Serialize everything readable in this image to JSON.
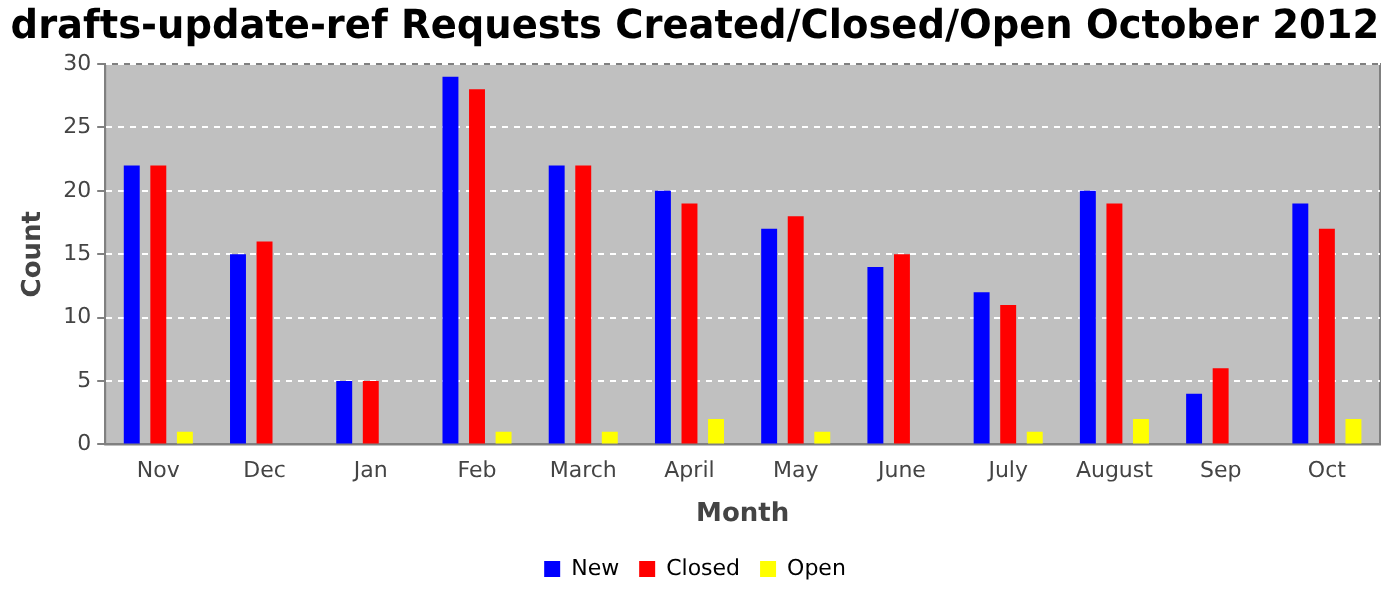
{
  "chart_data": {
    "type": "bar",
    "title": "drafts-update-ref Requests Created/Closed/Open October 2012",
    "xlabel": "Month",
    "ylabel": "Count",
    "categories": [
      "Nov",
      "Dec",
      "Jan",
      "Feb",
      "March",
      "April",
      "May",
      "June",
      "July",
      "August",
      "Sep",
      "Oct"
    ],
    "series": [
      {
        "name": "New",
        "color": "#0000ff",
        "values": [
          22,
          15,
          5,
          29,
          22,
          20,
          17,
          14,
          12,
          20,
          4,
          19
        ]
      },
      {
        "name": "Closed",
        "color": "#ff0000",
        "values": [
          22,
          16,
          5,
          28,
          22,
          19,
          18,
          15,
          11,
          19,
          6,
          17
        ]
      },
      {
        "name": "Open",
        "color": "#ffff00",
        "values": [
          1,
          0,
          0,
          1,
          1,
          2,
          1,
          0,
          1,
          2,
          0,
          2
        ]
      }
    ],
    "ylim": [
      0,
      30
    ],
    "yticks": [
      0,
      5,
      10,
      15,
      20,
      25,
      30
    ],
    "grid": "y",
    "legend": "bottom"
  }
}
